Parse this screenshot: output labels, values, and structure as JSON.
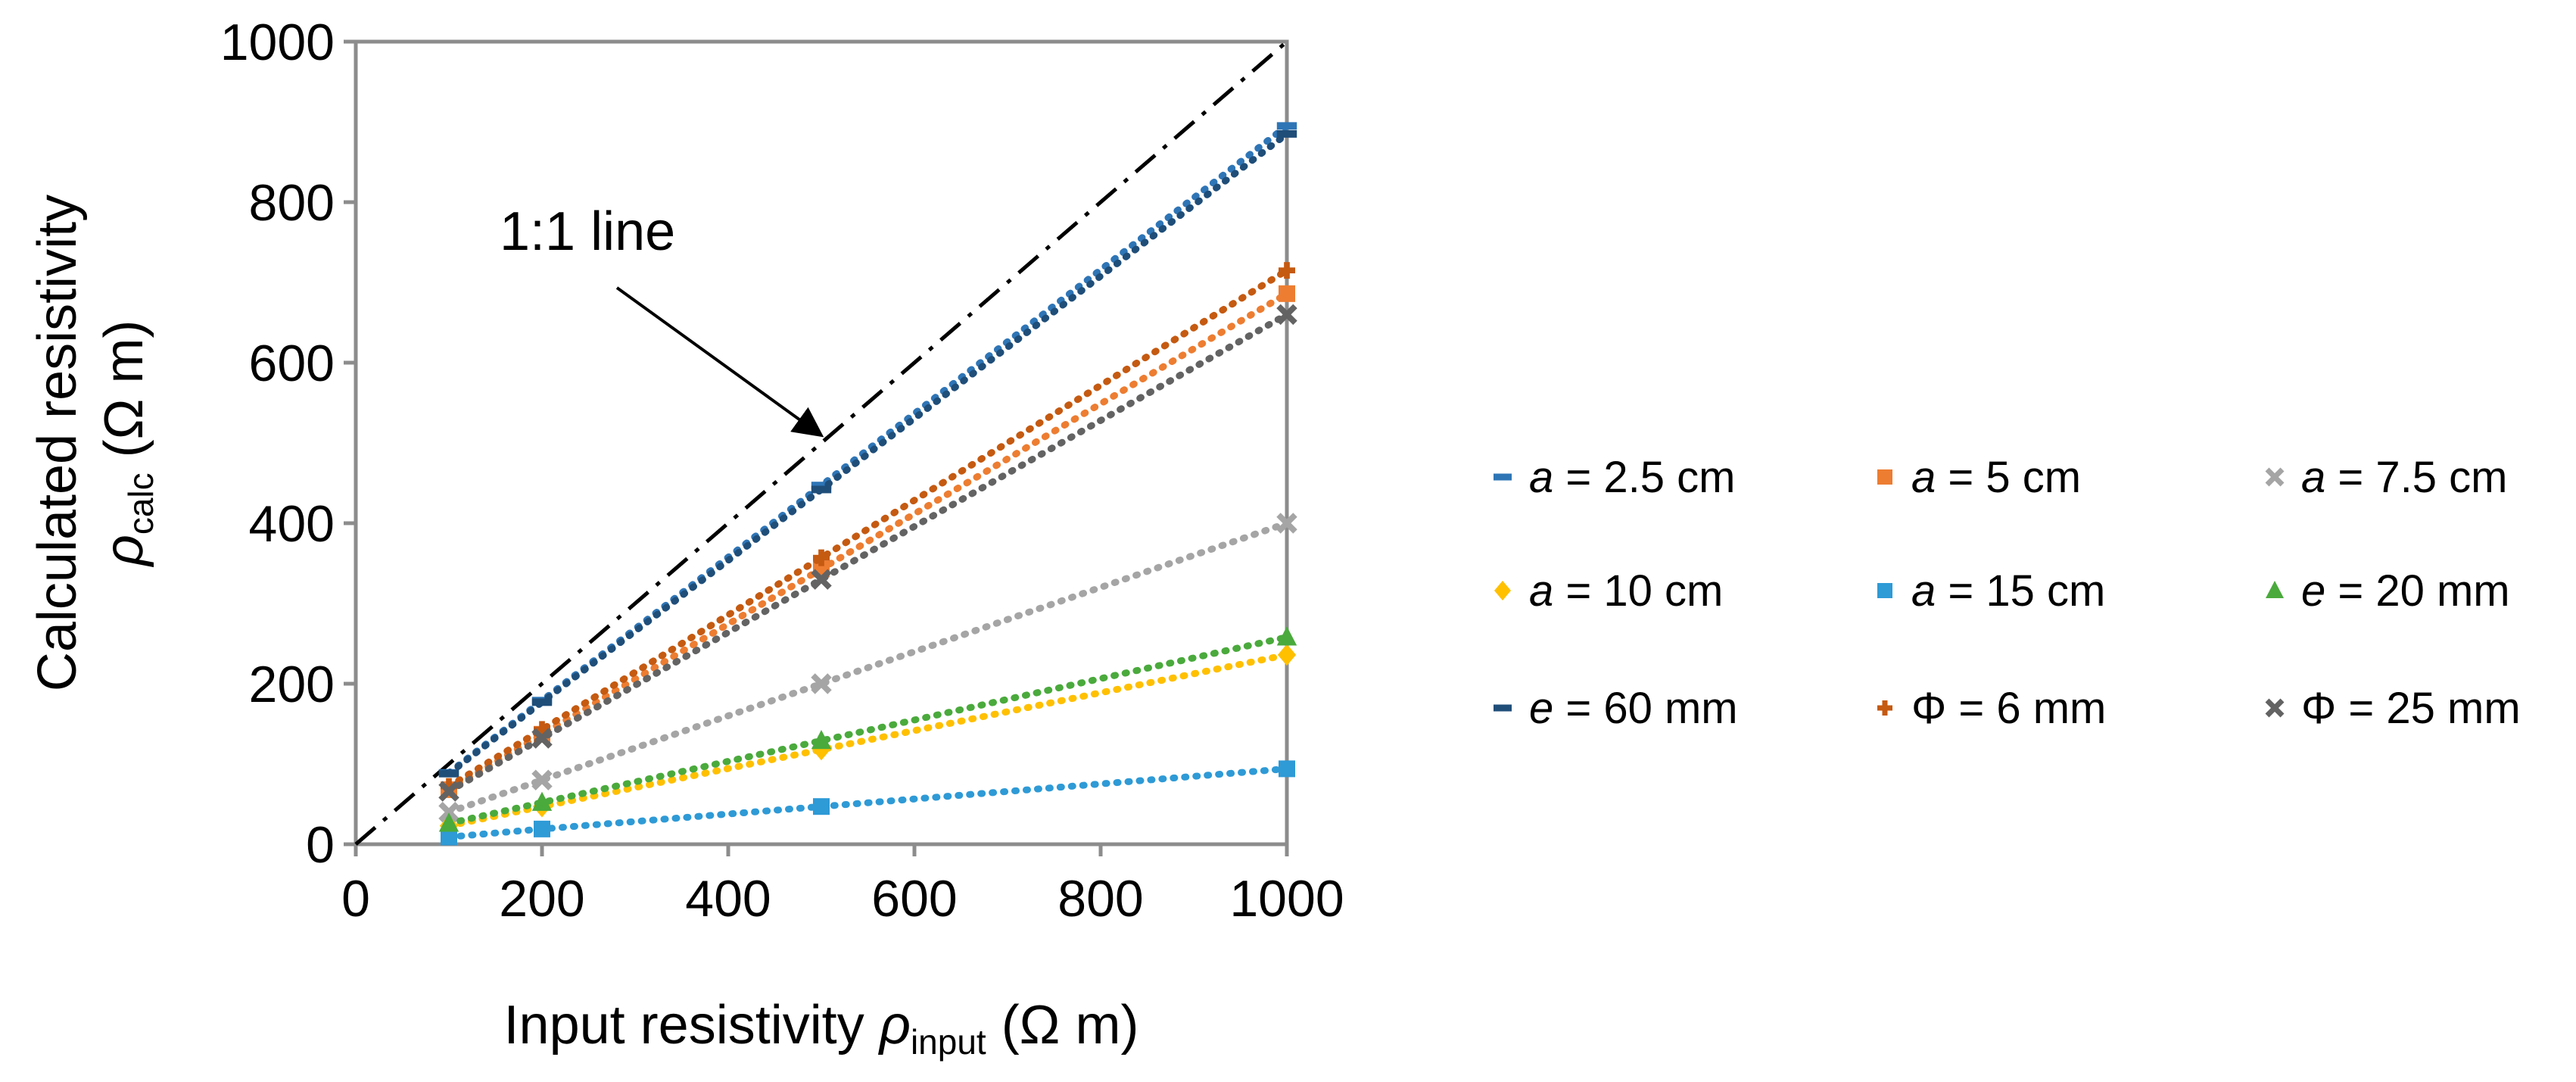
{
  "chart_data": {
    "type": "scatter",
    "title": "",
    "xlabel": {
      "prefix": "Input resistivity ",
      "symbol": "ρ",
      "sub": "input",
      "suffix": " (Ω m)"
    },
    "ylabel": {
      "line1": "Calculated resistivity",
      "symbol": "ρ",
      "sub": "calc",
      "suffix": " (Ω m)"
    },
    "xlim": [
      0,
      1000
    ],
    "ylim": [
      0,
      1000
    ],
    "xticks": [
      "0",
      "200",
      "400",
      "600",
      "800",
      "1000"
    ],
    "yticks": [
      "0",
      "200",
      "400",
      "600",
      "800",
      "1000"
    ],
    "grid": false,
    "legend_position": "right",
    "annotation": "1:1 line",
    "reference_line": {
      "x": [
        0,
        1000
      ],
      "y": [
        0,
        1000
      ],
      "style": "dash-dot",
      "color": "#000000"
    },
    "series": [
      {
        "name": "a = 2.5 cm",
        "var": "a",
        "rest": " = 2.5 cm",
        "color": "#2e75b6",
        "marker": "dash",
        "x": [
          100,
          200,
          500,
          1000
        ],
        "y": [
          89,
          179,
          447,
          895
        ]
      },
      {
        "name": "a = 5 cm",
        "var": "a",
        "rest": " = 5 cm",
        "color": "#ed7d31",
        "marker": "square",
        "x": [
          100,
          200,
          500,
          1000
        ],
        "y": [
          68,
          137,
          343,
          686
        ]
      },
      {
        "name": "a = 7.5 cm",
        "var": "a",
        "rest": " = 7.5 cm",
        "color": "#a5a5a5",
        "marker": "x",
        "x": [
          100,
          200,
          500,
          1000
        ],
        "y": [
          40,
          80,
          200,
          400
        ]
      },
      {
        "name": "a = 10 cm",
        "var": "a",
        "rest": " = 10 cm",
        "color": "#ffc000",
        "marker": "diamond",
        "x": [
          100,
          200,
          500,
          1000
        ],
        "y": [
          23,
          47,
          118,
          236
        ]
      },
      {
        "name": "a = 15 cm",
        "var": "a",
        "rest": " = 15 cm",
        "color": "#2e9ad6",
        "marker": "square",
        "x": [
          100,
          200,
          500,
          1000
        ],
        "y": [
          9,
          19,
          47,
          94
        ]
      },
      {
        "name": "e = 20 mm",
        "var": "e",
        "rest": " = 20 mm",
        "color": "#4aaa3c",
        "marker": "triangle",
        "x": [
          100,
          200,
          500,
          1000
        ],
        "y": [
          26,
          52,
          129,
          258
        ]
      },
      {
        "name": "e = 60 mm",
        "var": "e",
        "rest": " = 60 mm",
        "color": "#1f4e79",
        "marker": "dash",
        "x": [
          100,
          200,
          500,
          1000
        ],
        "y": [
          88,
          177,
          442,
          885
        ]
      },
      {
        "name": "Φ = 6 mm",
        "var": "",
        "rest": "Φ = 6 mm",
        "color": "#c55a11",
        "marker": "plus",
        "x": [
          100,
          200,
          500,
          1000
        ],
        "y": [
          72,
          143,
          357,
          715
        ]
      },
      {
        "name": "Φ = 25 mm",
        "var": "",
        "rest": "Φ = 25 mm",
        "color": "#636363",
        "marker": "x",
        "x": [
          100,
          200,
          500,
          1000
        ],
        "y": [
          66,
          132,
          330,
          660
        ]
      }
    ]
  }
}
